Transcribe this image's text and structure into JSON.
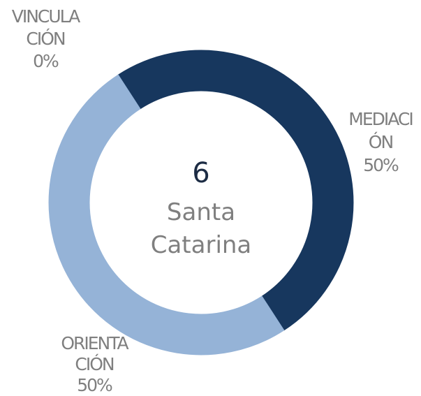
{
  "chart_data": {
    "type": "donut",
    "center_value": 6,
    "center_label": "Santa Catarina",
    "categories": [
      "VINCULACIÓN",
      "MEDIACIÓN",
      "ORIENTACIÓN"
    ],
    "values": [
      0,
      50,
      50
    ],
    "value_labels": [
      "0%",
      "50%",
      "50%"
    ],
    "colors": [
      "#4f81bd",
      "#17375e",
      "#95b3d7"
    ]
  }
}
